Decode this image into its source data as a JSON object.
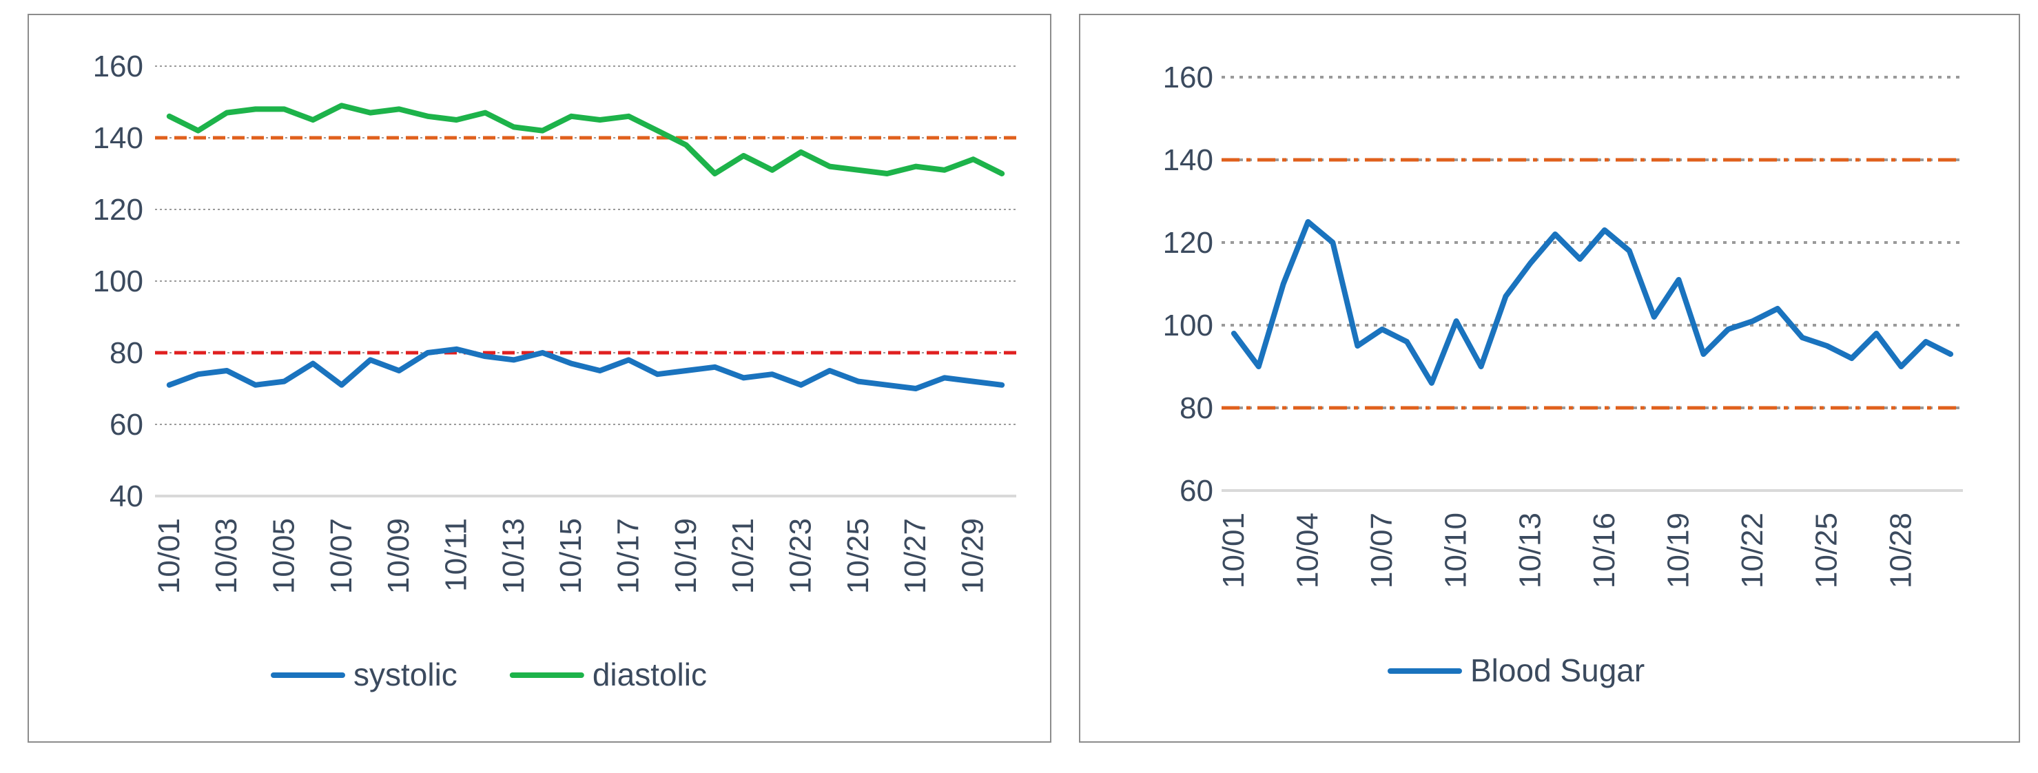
{
  "chart_data": [
    {
      "type": "line",
      "title": "",
      "xlabel": "",
      "ylabel": "",
      "ylim": [
        40,
        160
      ],
      "yticks": [
        "40",
        "60",
        "80",
        "100",
        "120",
        "140",
        "160"
      ],
      "grid": true,
      "legend": "bottom",
      "categories": [
        "10/01",
        "10/02",
        "10/03",
        "10/04",
        "10/05",
        "10/06",
        "10/07",
        "10/08",
        "10/09",
        "10/10",
        "10/11",
        "10/12",
        "10/13",
        "10/14",
        "10/15",
        "10/16",
        "10/17",
        "10/18",
        "10/19",
        "10/20",
        "10/21",
        "10/22",
        "10/23",
        "10/24",
        "10/25",
        "10/26",
        "10/27",
        "10/28",
        "10/29",
        "10/30"
      ],
      "tick_labels": [
        "10/01",
        "10/03",
        "10/05",
        "10/07",
        "10/09",
        "10/11",
        "10/13",
        "10/15",
        "10/17",
        "10/19",
        "10/21",
        "10/23",
        "10/25",
        "10/27",
        "10/29"
      ],
      "series": [
        {
          "name": "systolic",
          "color": "#1a73be",
          "values": [
            71,
            74,
            75,
            71,
            72,
            77,
            71,
            78,
            75,
            80,
            81,
            79,
            78,
            80,
            77,
            75,
            78,
            74,
            75,
            76,
            73,
            74,
            71,
            75,
            72,
            71,
            70,
            73,
            72,
            71
          ]
        },
        {
          "name": "diastolic",
          "color": "#1db34a",
          "values": [
            146,
            142,
            147,
            148,
            148,
            145,
            149,
            147,
            148,
            146,
            145,
            147,
            143,
            142,
            146,
            145,
            146,
            142,
            138,
            130,
            135,
            131,
            136,
            132,
            131,
            130,
            132,
            131,
            134,
            130
          ]
        }
      ],
      "reference_lines": [
        {
          "value": 140,
          "color": "#e0601c",
          "style": "dashed"
        },
        {
          "value": 80,
          "color": "#e02020",
          "style": "dashed"
        }
      ]
    },
    {
      "type": "line",
      "title": "",
      "xlabel": "",
      "ylabel": "",
      "ylim": [
        60,
        160
      ],
      "yticks": [
        "60",
        "80",
        "100",
        "120",
        "140",
        "160"
      ],
      "grid": true,
      "legend": "bottom",
      "categories": [
        "10/01",
        "10/02",
        "10/03",
        "10/04",
        "10/05",
        "10/06",
        "10/07",
        "10/08",
        "10/09",
        "10/10",
        "10/11",
        "10/12",
        "10/13",
        "10/14",
        "10/15",
        "10/16",
        "10/17",
        "10/18",
        "10/19",
        "10/20",
        "10/21",
        "10/22",
        "10/23",
        "10/24",
        "10/25",
        "10/26",
        "10/27",
        "10/28",
        "10/29",
        "10/30"
      ],
      "tick_labels": [
        "10/01",
        "10/04",
        "10/07",
        "10/10",
        "10/13",
        "10/16",
        "10/19",
        "10/22",
        "10/25",
        "10/28"
      ],
      "series": [
        {
          "name": "Blood Sugar",
          "color": "#1a73be",
          "values": [
            98,
            90,
            110,
            125,
            120,
            95,
            99,
            96,
            86,
            101,
            90,
            107,
            115,
            122,
            116,
            123,
            118,
            102,
            111,
            93,
            99,
            101,
            104,
            97,
            95,
            92,
            98,
            90,
            96,
            93
          ]
        }
      ],
      "reference_lines": [
        {
          "value": 140,
          "color": "#e0601c",
          "style": "dashdot"
        },
        {
          "value": 80,
          "color": "#e0601c",
          "style": "dashdot"
        }
      ]
    }
  ]
}
